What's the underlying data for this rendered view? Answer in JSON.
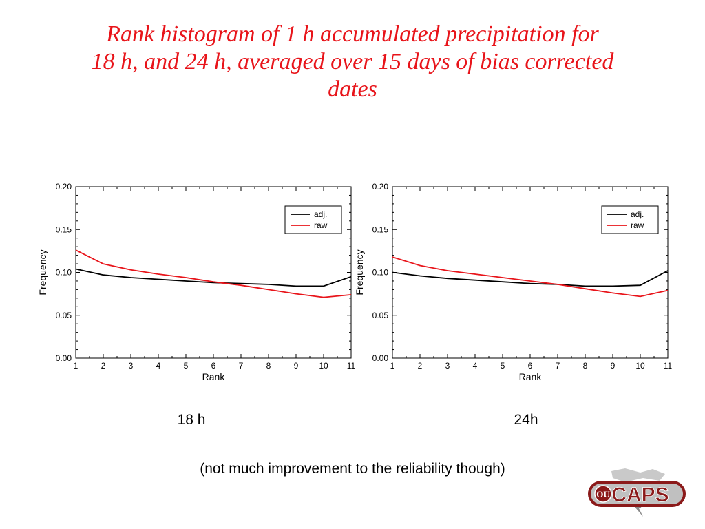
{
  "slide": {
    "title_lines": [
      "Rank histogram of 1 h accumulated precipitation for",
      "18 h, and 24 h, averaged over 15 days of bias corrected",
      "dates"
    ],
    "note": "(not much improvement to the reliability though)",
    "logo_text": "CAPS",
    "logo_mark": "OU"
  },
  "colors": {
    "title": "#e8141a",
    "adj": "#000000",
    "raw": "#e8141a"
  },
  "chart_data": [
    {
      "type": "line",
      "caption": "18 h",
      "xlabel": "Rank",
      "ylabel": "Frequency",
      "xlim": [
        1,
        11
      ],
      "ylim": [
        0,
        0.2
      ],
      "x": [
        1,
        2,
        3,
        4,
        5,
        6,
        7,
        8,
        9,
        10,
        11
      ],
      "xticks": [
        "1",
        "2",
        "3",
        "4",
        "5",
        "6",
        "7",
        "8",
        "9",
        "10",
        "11"
      ],
      "yticks": [
        "0.00",
        "0.05",
        "0.10",
        "0.15",
        "0.20"
      ],
      "legend_position": "top-right",
      "series": [
        {
          "name": "adj.",
          "color": "#000000",
          "values": [
            0.104,
            0.097,
            0.094,
            0.092,
            0.09,
            0.088,
            0.087,
            0.086,
            0.084,
            0.084,
            0.095
          ]
        },
        {
          "name": "raw",
          "color": "#e8141a",
          "values": [
            0.126,
            0.11,
            0.103,
            0.098,
            0.094,
            0.089,
            0.085,
            0.08,
            0.075,
            0.071,
            0.074
          ]
        }
      ]
    },
    {
      "type": "line",
      "caption": "24h",
      "xlabel": "Rank",
      "ylabel": "Frequency",
      "xlim": [
        1,
        11
      ],
      "ylim": [
        0,
        0.2
      ],
      "x": [
        1,
        2,
        3,
        4,
        5,
        6,
        7,
        8,
        9,
        10,
        11
      ],
      "xticks": [
        "1",
        "2",
        "3",
        "4",
        "5",
        "6",
        "7",
        "8",
        "9",
        "10",
        "11"
      ],
      "yticks": [
        "0.00",
        "0.05",
        "0.10",
        "0.15",
        "0.20"
      ],
      "legend_position": "top-right",
      "series": [
        {
          "name": "adj.",
          "color": "#000000",
          "values": [
            0.1,
            0.096,
            0.093,
            0.091,
            0.089,
            0.087,
            0.086,
            0.084,
            0.084,
            0.085,
            0.102
          ]
        },
        {
          "name": "raw",
          "color": "#e8141a",
          "values": [
            0.118,
            0.108,
            0.102,
            0.098,
            0.094,
            0.09,
            0.086,
            0.081,
            0.076,
            0.072,
            0.079
          ]
        }
      ]
    }
  ]
}
